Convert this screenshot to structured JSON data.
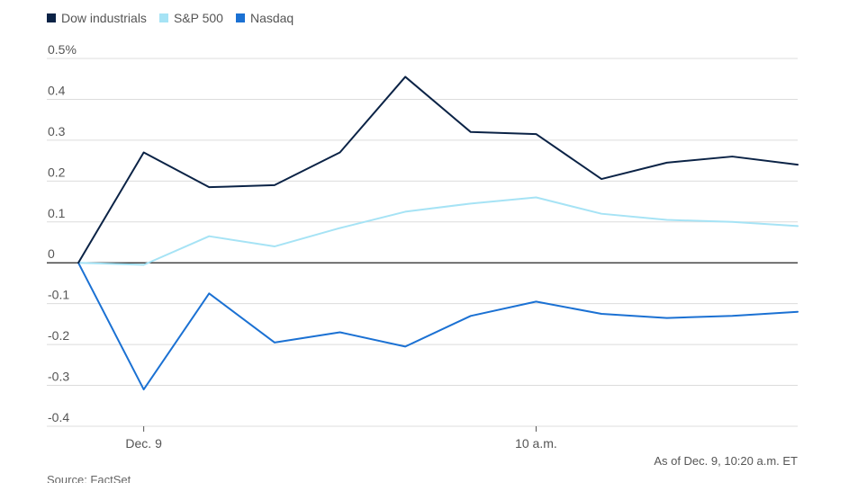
{
  "chart_data": {
    "type": "line",
    "title": "",
    "xlabel": "",
    "ylabel": "",
    "ylim": [
      -0.4,
      0.5
    ],
    "yticks": [
      {
        "value": 0.5,
        "label": "0.5%"
      },
      {
        "value": 0.4,
        "label": "0.4"
      },
      {
        "value": 0.3,
        "label": "0.3"
      },
      {
        "value": 0.2,
        "label": "0.2"
      },
      {
        "value": 0.1,
        "label": "0.1"
      },
      {
        "value": 0,
        "label": "0"
      },
      {
        "value": -0.1,
        "label": "-0.1"
      },
      {
        "value": -0.2,
        "label": "-0.2"
      },
      {
        "value": -0.3,
        "label": "-0.3"
      },
      {
        "value": -0.4,
        "label": "-0.4"
      }
    ],
    "xticks": [
      {
        "index": 1,
        "label": "Dec. 9"
      },
      {
        "index": 7,
        "label": "10 a.m."
      }
    ],
    "grid": true,
    "legend_position": "top-left",
    "x": [
      0,
      1,
      2,
      3,
      4,
      5,
      6,
      7,
      8,
      9,
      10,
      11
    ],
    "series": [
      {
        "name": "Dow industrials",
        "color": "#0b2346",
        "values": [
          0,
          0.27,
          0.185,
          0.19,
          0.27,
          0.455,
          0.32,
          0.315,
          0.205,
          0.245,
          0.26,
          0.24
        ]
      },
      {
        "name": "S&P 500",
        "color": "#a6e3f5",
        "values": [
          0,
          -0.005,
          0.065,
          0.04,
          0.085,
          0.125,
          0.145,
          0.16,
          0.12,
          0.105,
          0.1,
          0.09
        ]
      },
      {
        "name": "Nasdaq",
        "color": "#1b71d3",
        "values": [
          0,
          -0.31,
          -0.075,
          -0.195,
          -0.17,
          -0.205,
          -0.13,
          -0.095,
          -0.125,
          -0.135,
          -0.13,
          -0.12
        ]
      }
    ],
    "annotation": "As of Dec. 9, 10:20 a.m. ET"
  },
  "source_text": "Source: FactSet"
}
